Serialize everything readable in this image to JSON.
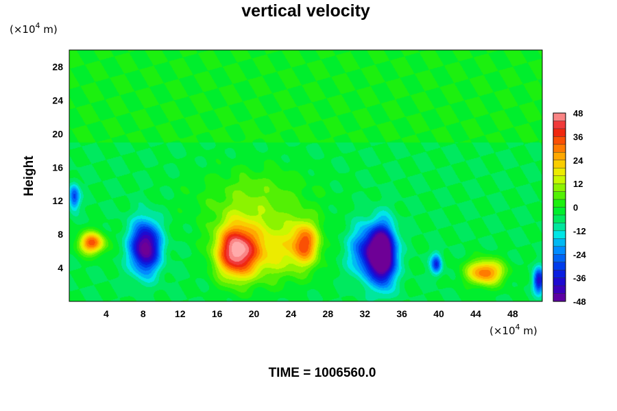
{
  "chart_data": {
    "type": "heatmap",
    "title": "vertical velocity",
    "ylabel": "Height",
    "xlabel": "",
    "x_unit": {
      "prefix": "(×10",
      "exp": "4",
      "suffix": " m)"
    },
    "y_unit": {
      "prefix": "(×10",
      "exp": "4",
      "suffix": " m)"
    },
    "xlim": [
      0,
      51.2
    ],
    "ylim": [
      0,
      30
    ],
    "x_ticks": [
      4,
      8,
      12,
      16,
      20,
      24,
      28,
      32,
      36,
      40,
      44,
      48
    ],
    "y_ticks": [
      4,
      8,
      12,
      16,
      20,
      24,
      28
    ],
    "colorbar": {
      "range": [
        -48,
        48
      ],
      "step": 4,
      "tick_labels": [
        "48",
        "36",
        "24",
        "12",
        "0",
        "-12",
        "-24",
        "-36",
        "-48"
      ],
      "placement": "right"
    },
    "field_features": [
      {
        "kind": "updraft",
        "x": 18,
        "y": 6,
        "peak": 48,
        "sx": 2.2,
        "sy": 3.2
      },
      {
        "kind": "updraft",
        "x": 22,
        "y": 6,
        "peak": 20,
        "sx": 4.0,
        "sy": 3.5
      },
      {
        "kind": "updraft",
        "x": 25.5,
        "y": 7,
        "peak": 30,
        "sx": 1.5,
        "sy": 2.5
      },
      {
        "kind": "updraft",
        "x": 20,
        "y": 12,
        "peak": 12,
        "sx": 6,
        "sy": 4
      },
      {
        "kind": "updraft",
        "x": 2.4,
        "y": 7,
        "peak": 38,
        "sx": 1.4,
        "sy": 1.3
      },
      {
        "kind": "updraft",
        "x": 45,
        "y": 3.5,
        "peak": 36,
        "sx": 2.0,
        "sy": 1.5
      },
      {
        "kind": "downdraft",
        "x": 8.2,
        "y": 6.5,
        "peak": -48,
        "sx": 1.6,
        "sy": 3.0
      },
      {
        "kind": "downdraft",
        "x": 34,
        "y": 5.5,
        "peak": -48,
        "sx": 1.3,
        "sy": 3.5
      },
      {
        "kind": "downdraft",
        "x": 32.5,
        "y": 6,
        "peak": -34,
        "sx": 2.0,
        "sy": 3.0
      },
      {
        "kind": "downdraft",
        "x": 39.7,
        "y": 4.5,
        "peak": -28,
        "sx": 0.6,
        "sy": 1.2
      },
      {
        "kind": "downdraft",
        "x": 0.5,
        "y": 12.5,
        "peak": -26,
        "sx": 0.6,
        "sy": 1.5
      },
      {
        "kind": "downdraft",
        "x": 50.8,
        "y": 2.5,
        "peak": -34,
        "sx": 0.6,
        "sy": 1.5
      }
    ],
    "field_baseline": -4
  },
  "footer": {
    "time_label": "TIME = 1006560.0"
  }
}
